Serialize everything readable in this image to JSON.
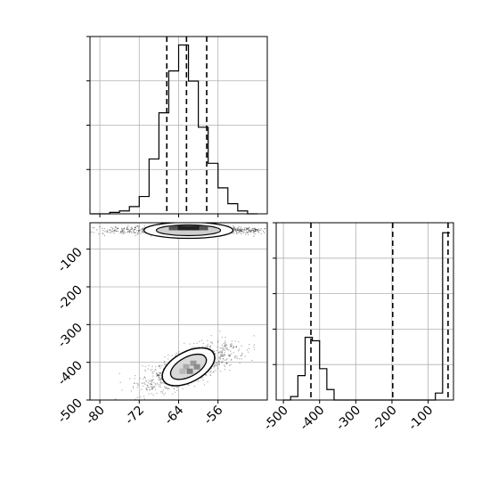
{
  "chart_data": [
    {
      "type": "histogram",
      "panel": "top-left",
      "x_range": [
        -82,
        -46
      ],
      "bin_edges": [
        -82,
        -80,
        -78,
        -76,
        -74,
        -72,
        -70,
        -68,
        -66,
        -64,
        -62,
        -60,
        -58,
        -56,
        -54,
        -52,
        -50,
        -48
      ],
      "counts": [
        0,
        0,
        1,
        2,
        5,
        12,
        38,
        70,
        99,
        117,
        92,
        60,
        35,
        18,
        7,
        2,
        0
      ],
      "quantile_lines": [
        -66.4,
        -62.4,
        -58.3
      ],
      "grid": true,
      "x_tick_labels": [
        "-80",
        "-72",
        "-64",
        "-56"
      ],
      "x_ticks": [
        -80,
        -72,
        -64,
        -56
      ]
    },
    {
      "type": "scatter-density",
      "panel": "bottom-left",
      "x_range": [
        -82,
        -46
      ],
      "y_range": [
        -500,
        -30
      ],
      "clusters": [
        {
          "x_center": -62,
          "y_center": -50,
          "x_spread": 9,
          "y_spread": 5
        },
        {
          "x_center": -62,
          "y_center": -412,
          "x_spread": 5,
          "y_spread": 30,
          "correlated": true
        }
      ],
      "grid": true,
      "x_tick_labels": [
        "-80",
        "-72",
        "-64",
        "-56"
      ],
      "x_ticks": [
        -80,
        -72,
        -64,
        -56
      ],
      "y_tick_labels": [
        "-100",
        "-200",
        "-300",
        "-400",
        "-500"
      ],
      "y_ticks": [
        -100,
        -200,
        -300,
        -400,
        -500
      ]
    },
    {
      "type": "histogram",
      "panel": "bottom-right",
      "x_range": [
        -520,
        -30
      ],
      "bin_edges": [
        -500,
        -480,
        -460,
        -440,
        -420,
        -400,
        -380,
        -360,
        -340,
        -320,
        -300,
        -280,
        -260,
        -240,
        -220,
        -200,
        -180,
        -160,
        -140,
        -120,
        -100,
        -80,
        -60,
        -40
      ],
      "counts": [
        0,
        1,
        7,
        18,
        17,
        9,
        3,
        0,
        0,
        0,
        0,
        0,
        0,
        0,
        0,
        0,
        0,
        0,
        0,
        0,
        0,
        2,
        48
      ],
      "quantile_lines": [
        -424,
        -198,
        -45
      ],
      "grid": true,
      "x_tick_labels": [
        "-500",
        "-400",
        "-300",
        "-200",
        "-100"
      ],
      "x_ticks": [
        -500,
        -400,
        -300,
        -200,
        -100
      ]
    }
  ]
}
